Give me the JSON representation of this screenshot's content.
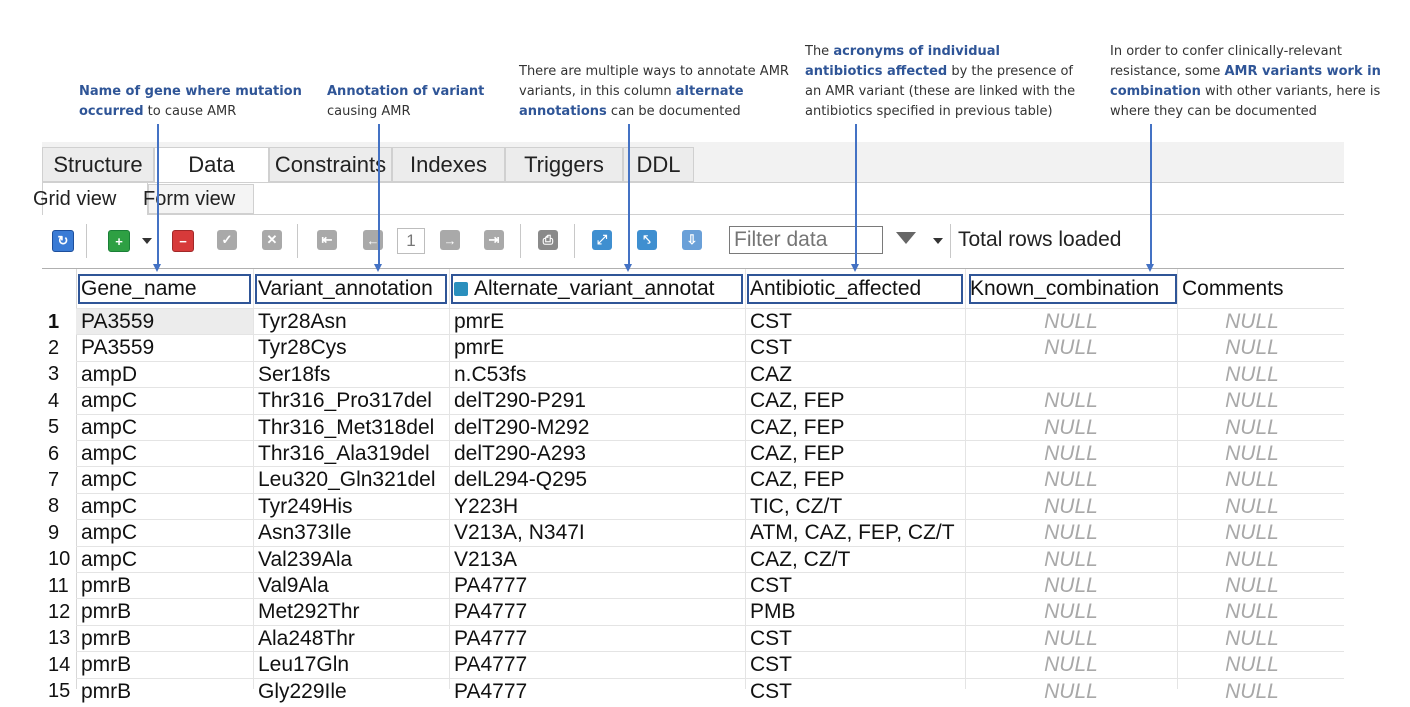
{
  "annotations": {
    "gene": {
      "bold": "Name of gene where mutation occurred",
      "rest": " to cause AMR"
    },
    "variant": {
      "bold": "Annotation of variant",
      "rest": " causing AMR"
    },
    "alternate": {
      "pre": "There are multiple ways to annotate AMR variants, in this column ",
      "bold1": "alternate annotations",
      "rest": " can be documented"
    },
    "antibiotic": {
      "pre": "The ",
      "bold": "acronyms of individual antibiotics affected",
      "rest": " by the presence of an AMR variant  (these are linked with the antibiotics specified in previous table)"
    },
    "combination": {
      "pre": "In order to confer clinically-relevant resistance, some ",
      "bold": "AMR variants work in combination",
      "rest": " with other variants, here is where they can be documented"
    }
  },
  "tabs": [
    "Structure",
    "Data",
    "Constraints",
    "Indexes",
    "Triggers",
    "DDL"
  ],
  "active_tab": "Data",
  "subtabs": [
    "Grid view",
    "Form view"
  ],
  "toolbar": {
    "page_number": "1",
    "filter_placeholder": "Filter data",
    "rows_loaded": "Total rows loaded",
    "icons": [
      "refresh-icon",
      "add-row-icon",
      "dropdown-icon",
      "delete-row-icon",
      "commit-icon",
      "rollback-icon",
      "first-page-icon",
      "prev-page-icon",
      "next-page-icon",
      "last-page-icon",
      "print-icon",
      "expand-icon",
      "collapse-icon",
      "export-icon",
      "filter-icon"
    ]
  },
  "grid": {
    "columns": [
      "Gene_name",
      "Variant_annotation",
      "Alternate_variant_annotat",
      "Antibiotic_affected",
      "Known_combination",
      "Comments"
    ],
    "null_label": "NULL",
    "rows": [
      [
        "1",
        "PA3559",
        "Tyr28Asn",
        "pmrE",
        "CST",
        "NULL",
        "NULL"
      ],
      [
        "2",
        "PA3559",
        "Tyr28Cys",
        "pmrE",
        "CST",
        "NULL",
        "NULL"
      ],
      [
        "3",
        "ampD",
        "Ser18fs",
        "n.C53fs",
        "CAZ",
        "",
        "NULL"
      ],
      [
        "4",
        "ampC",
        "Thr316_Pro317del",
        "delT290-P291",
        "CAZ, FEP",
        "NULL",
        "NULL"
      ],
      [
        "5",
        "ampC",
        "Thr316_Met318del",
        "delT290-M292",
        "CAZ, FEP",
        "NULL",
        "NULL"
      ],
      [
        "6",
        "ampC",
        "Thr316_Ala319del",
        "delT290-A293",
        "CAZ, FEP",
        "NULL",
        "NULL"
      ],
      [
        "7",
        "ampC",
        "Leu320_Gln321del",
        "delL294-Q295",
        "CAZ, FEP",
        "NULL",
        "NULL"
      ],
      [
        "8",
        "ampC",
        "Tyr249His",
        "Y223H",
        "TIC, CZ/T",
        "NULL",
        "NULL"
      ],
      [
        "9",
        "ampC",
        "Asn373Ile",
        "V213A, N347I",
        "ATM, CAZ, FEP, CZ/T",
        "NULL",
        "NULL"
      ],
      [
        "10",
        "ampC",
        "Val239Ala",
        "V213A",
        "CAZ, CZ/T",
        "NULL",
        "NULL"
      ],
      [
        "11",
        "pmrB",
        "Val9Ala",
        "PA4777",
        "CST",
        "NULL",
        "NULL"
      ],
      [
        "12",
        "pmrB",
        "Met292Thr",
        "PA4777",
        "PMB",
        "NULL",
        "NULL"
      ],
      [
        "13",
        "pmrB",
        "Ala248Thr",
        "PA4777",
        "CST",
        "NULL",
        "NULL"
      ],
      [
        "14",
        "pmrB",
        "Leu17Gln",
        "PA4777",
        "CST",
        "NULL",
        "NULL"
      ],
      [
        "15",
        "pmrB",
        "Gly229Ile",
        "PA4777",
        "CST",
        "NULL",
        "NULL"
      ]
    ]
  }
}
